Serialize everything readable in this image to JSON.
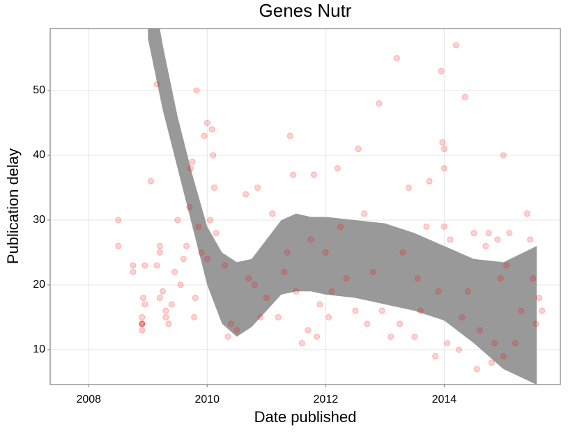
{
  "chart_data": {
    "type": "scatter",
    "title": "Genes Nutr",
    "x_label": "Date published",
    "y_label": "Publication delay",
    "x": [
      2008.5,
      2008.5,
      2008.75,
      2008.75,
      2008.9,
      2008.9,
      2008.9,
      2008.9,
      2008.9,
      2008.92,
      2008.95,
      2008.95,
      2009.05,
      2009.15,
      2009.15,
      2009.2,
      2009.2,
      2009.2,
      2009.25,
      2009.3,
      2009.3,
      2009.35,
      2009.4,
      2009.45,
      2009.5,
      2009.55,
      2009.6,
      2009.65,
      2009.7,
      2009.72,
      2009.75,
      2009.78,
      2009.8,
      2009.82,
      2009.85,
      2009.9,
      2009.95,
      2010.0,
      2010.0,
      2010.05,
      2010.08,
      2010.1,
      2010.12,
      2010.15,
      2010.3,
      2010.35,
      2010.4,
      2010.5,
      2010.65,
      2010.7,
      2010.8,
      2010.85,
      2010.9,
      2011.0,
      2011.1,
      2011.2,
      2011.3,
      2011.35,
      2011.4,
      2011.45,
      2011.5,
      2011.6,
      2011.7,
      2011.75,
      2011.8,
      2011.85,
      2011.9,
      2012.0,
      2012.05,
      2012.1,
      2012.2,
      2012.25,
      2012.35,
      2012.5,
      2012.55,
      2012.65,
      2012.7,
      2012.8,
      2012.9,
      2012.95,
      2013.1,
      2013.2,
      2013.25,
      2013.3,
      2013.4,
      2013.5,
      2013.55,
      2013.6,
      2013.7,
      2013.75,
      2013.85,
      2013.9,
      2013.95,
      2013.97,
      2014.0,
      2014.0,
      2014.0,
      2014.05,
      2014.1,
      2014.2,
      2014.25,
      2014.3,
      2014.35,
      2014.4,
      2014.5,
      2014.55,
      2014.6,
      2014.7,
      2014.75,
      2014.8,
      2014.85,
      2014.9,
      2014.95,
      2015.0,
      2015.0,
      2015.05,
      2015.1,
      2015.2,
      2015.3,
      2015.4,
      2015.45,
      2015.5,
      2015.55,
      2015.6,
      2015.65
    ],
    "values": [
      30,
      26,
      23,
      22,
      14,
      14,
      14,
      13,
      15,
      18,
      17,
      23,
      36,
      51,
      23,
      26,
      25,
      18,
      19,
      16,
      15,
      14,
      17,
      22,
      30,
      20,
      24,
      26,
      32,
      38,
      39,
      15,
      18,
      50,
      29,
      25,
      43,
      24,
      45,
      30,
      44,
      40,
      35,
      28,
      23,
      12,
      14,
      13,
      34,
      21,
      20,
      35,
      15,
      18,
      31,
      15,
      22,
      25,
      43,
      37,
      19,
      11,
      13,
      27,
      37,
      12,
      17,
      25,
      15,
      19,
      38,
      29,
      21,
      16,
      41,
      31,
      14,
      22,
      48,
      16,
      12,
      55,
      14,
      25,
      35,
      12,
      21,
      16,
      29,
      36,
      9,
      19,
      53,
      42,
      41,
      29,
      38,
      11,
      27,
      57,
      10,
      15,
      49,
      19,
      28,
      7,
      13,
      26,
      28,
      8,
      11,
      27,
      21,
      40,
      9,
      23,
      28,
      11,
      16,
      31,
      27,
      21,
      14,
      18,
      16
    ],
    "color": "#ff0000",
    "band": {
      "x": [
        2009.0,
        2009.25,
        2009.5,
        2009.75,
        2010.0,
        2010.25,
        2010.5,
        2010.75,
        2011.0,
        2011.25,
        2011.5,
        2011.75,
        2012.0,
        2012.5,
        2013.0,
        2013.5,
        2014.0,
        2014.5,
        2015.0,
        2015.56
      ],
      "lower": [
        58,
        47,
        38,
        29,
        20,
        14,
        12,
        13.5,
        16,
        18.5,
        19,
        19,
        18.5,
        18,
        17,
        16,
        14.5,
        11,
        7,
        4.6
      ],
      "upper": [
        70,
        57,
        46,
        37,
        29,
        25,
        23.5,
        24,
        27,
        30,
        31,
        30.5,
        30.5,
        30,
        29.5,
        28,
        26,
        24,
        23.5,
        26
      ],
      "color": "#999999"
    },
    "xlim": [
      2007.35,
      2015.96
    ],
    "ylim": [
      4.62,
      59.57
    ],
    "xticks": [
      2008,
      2010,
      2012,
      2014
    ],
    "yticks": [
      10,
      20,
      30,
      40,
      50
    ],
    "grid": true
  }
}
